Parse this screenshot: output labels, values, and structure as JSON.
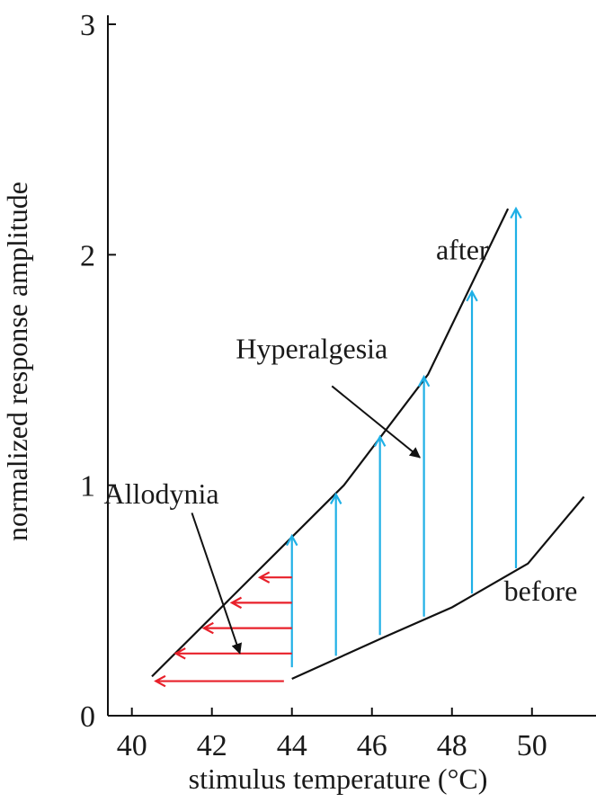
{
  "colors": {
    "curve": "#111111",
    "hyperalgesia_arrow": "#1fb0e6",
    "allodynia_arrow": "#e8202a",
    "axis": "#111111"
  },
  "chart_data": {
    "type": "line",
    "xlabel": "stimulus temperature (°C)",
    "ylabel": "normalized response amplitude",
    "xlim": [
      39.4,
      51.6
    ],
    "ylim": [
      0,
      3
    ],
    "xticks": [
      40,
      42,
      44,
      46,
      48,
      50
    ],
    "yticks": [
      0,
      1,
      2,
      3
    ],
    "grid": false,
    "legend": "none",
    "series": [
      {
        "name": "after",
        "points": [
          [
            40.5,
            0.17
          ],
          [
            45.3,
            1.0
          ],
          [
            47.4,
            1.48
          ],
          [
            49.4,
            2.2
          ]
        ]
      },
      {
        "name": "before",
        "points": [
          [
            44.0,
            0.16
          ],
          [
            46.3,
            0.34
          ],
          [
            48.0,
            0.47
          ],
          [
            49.9,
            0.66
          ],
          [
            51.3,
            0.95
          ]
        ]
      }
    ],
    "hyperalgesia_arrows": [
      {
        "x": 44.0,
        "from": 0.21,
        "to": 0.78
      },
      {
        "x": 45.1,
        "from": 0.26,
        "to": 0.96
      },
      {
        "x": 46.2,
        "from": 0.35,
        "to": 1.21
      },
      {
        "x": 47.3,
        "from": 0.43,
        "to": 1.47
      },
      {
        "x": 48.5,
        "from": 0.53,
        "to": 1.84
      },
      {
        "x": 49.6,
        "from": 0.64,
        "to": 2.2
      }
    ],
    "allodynia_arrows": [
      {
        "y": 0.6,
        "from": 44.0,
        "to": 43.2
      },
      {
        "y": 0.49,
        "from": 44.0,
        "to": 42.5
      },
      {
        "y": 0.38,
        "from": 44.0,
        "to": 41.8
      },
      {
        "y": 0.27,
        "from": 44.0,
        "to": 41.1
      },
      {
        "y": 0.15,
        "from": 43.8,
        "to": 40.6
      }
    ],
    "annotations": [
      {
        "key": "after",
        "text": "after",
        "x": 47.6,
        "y": 1.98,
        "arrow": null
      },
      {
        "key": "before",
        "text": "before",
        "x": 49.3,
        "y": 0.5,
        "arrow": null
      },
      {
        "key": "hyperalgesia",
        "text": "Hyperalgesia",
        "x": 42.6,
        "y": 1.55,
        "arrow": {
          "x1": 45.0,
          "y1": 1.43,
          "x2": 47.2,
          "y2": 1.12
        }
      },
      {
        "key": "allodynia",
        "text": "Allodynia",
        "x": 39.3,
        "y": 0.92,
        "arrow": {
          "x1": 41.5,
          "y1": 0.88,
          "x2": 42.7,
          "y2": 0.27
        }
      }
    ]
  }
}
